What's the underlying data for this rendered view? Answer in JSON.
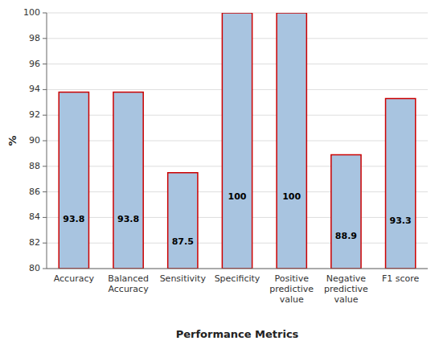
{
  "chart_data": {
    "type": "bar",
    "xlabel": "Performance Metrics",
    "ylabel": "%",
    "categories": [
      "Accuracy",
      "Balanced\nAccuracy",
      "Sensitivity",
      "Specificity",
      "Positive\npredictive\nvalue",
      "Negative\npredictive\nvalue",
      "F1 score"
    ],
    "values": [
      93.8,
      93.8,
      87.5,
      100.0,
      100.0,
      88.9,
      93.3
    ],
    "value_labels": [
      "93.8",
      "93.8",
      "87.5",
      "100",
      "100",
      "88.9",
      "93.3"
    ],
    "data_labels": true,
    "color": "#A8C4E0",
    "ylim": [
      80,
      100
    ],
    "yticks": [
      80,
      82,
      84,
      86,
      88,
      90,
      92,
      94,
      96,
      98,
      100
    ],
    "grid": true
  }
}
